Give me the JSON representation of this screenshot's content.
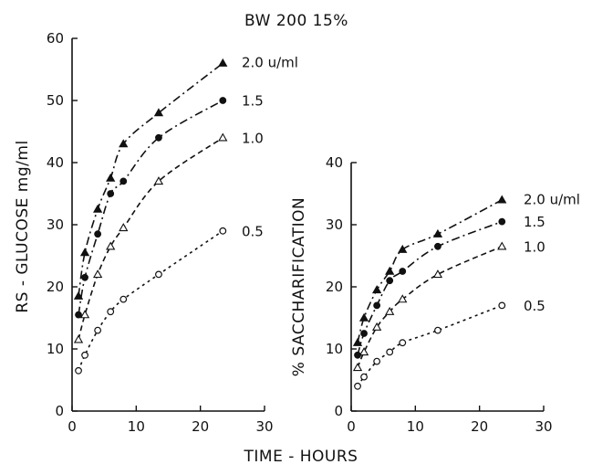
{
  "title": "BW 200 15%",
  "shared_xlabel": "TIME - HOURS",
  "marker_styles": {
    "2.0 u/ml": "filled-triangle",
    "1.5": "filled-circle",
    "1.0": "open-triangle",
    "0.5": "open-circle"
  },
  "colors": {
    "ink": "#111111",
    "background": "#ffffff"
  },
  "chart_data": [
    {
      "type": "line",
      "title": "",
      "xlabel": "",
      "ylabel": "RS - GLUCOSE mg/ml",
      "xlim": [
        0,
        30
      ],
      "ylim": [
        0,
        60
      ],
      "xticks": [
        0,
        10,
        20,
        30
      ],
      "yticks": [
        0,
        10,
        20,
        30,
        40,
        50,
        60
      ],
      "x": [
        1,
        2,
        4,
        6,
        8,
        13.5,
        23.5
      ],
      "series": [
        {
          "name": "2.0 u/ml",
          "marker": "filled-triangle",
          "values": [
            18.5,
            25.5,
            32.5,
            37.5,
            43,
            48,
            56
          ]
        },
        {
          "name": "1.5",
          "marker": "filled-circle",
          "values": [
            15.5,
            21.5,
            28.5,
            35,
            37,
            44,
            50
          ]
        },
        {
          "name": "1.0",
          "marker": "open-triangle",
          "values": [
            11.5,
            15.5,
            22,
            26.5,
            29.5,
            37,
            44
          ]
        },
        {
          "name": "0.5",
          "marker": "open-circle",
          "values": [
            6.5,
            9,
            13,
            16,
            18,
            22,
            29
          ]
        }
      ],
      "grid": false,
      "legend": "none"
    },
    {
      "type": "line",
      "title": "",
      "xlabel": "",
      "ylabel": "% SACCHARIFICATION",
      "xlim": [
        0,
        30
      ],
      "ylim": [
        0,
        40
      ],
      "xticks": [
        0,
        10,
        20,
        30
      ],
      "yticks": [
        0,
        10,
        20,
        30,
        40
      ],
      "x": [
        1,
        2,
        4,
        6,
        8,
        13.5,
        23.5
      ],
      "series": [
        {
          "name": "2.0 u/ml",
          "marker": "filled-triangle",
          "values": [
            11,
            15,
            19.5,
            22.5,
            26,
            28.5,
            34
          ]
        },
        {
          "name": "1.5",
          "marker": "filled-circle",
          "values": [
            9,
            12.5,
            17,
            21,
            22.5,
            26.5,
            30.5
          ]
        },
        {
          "name": "1.0",
          "marker": "open-triangle",
          "values": [
            7,
            9.5,
            13.5,
            16,
            18,
            22,
            26.5
          ]
        },
        {
          "name": "0.5",
          "marker": "open-circle",
          "values": [
            4,
            5.5,
            8,
            9.5,
            11,
            13,
            17
          ]
        }
      ],
      "grid": false,
      "legend": "none"
    }
  ]
}
